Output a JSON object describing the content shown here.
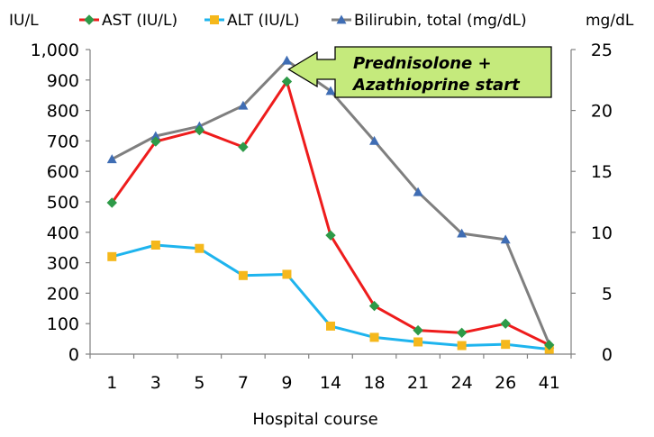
{
  "chart_data": {
    "type": "line",
    "categories": [
      "1",
      "3",
      "5",
      "7",
      "9",
      "14",
      "18",
      "21",
      "24",
      "26",
      "41"
    ],
    "xlabel": "Hospital course",
    "y_left": {
      "unit": "IU/L",
      "range": [
        0,
        1000
      ],
      "ticks": [
        "0",
        "100",
        "200",
        "300",
        "400",
        "500",
        "600",
        "700",
        "800",
        "900",
        "1,000"
      ]
    },
    "y_right": {
      "unit": "mg/dL",
      "range": [
        0,
        25
      ],
      "ticks": [
        "0",
        "5",
        "10",
        "15",
        "20",
        "25"
      ]
    },
    "series": [
      {
        "name": "AST (IU/L)",
        "axis": "left",
        "color": "#ee1c1c",
        "marker": "diamond",
        "marker_color": "#2e9a48",
        "values": [
          497,
          698,
          735,
          680,
          895,
          390,
          158,
          78,
          70,
          100,
          30
        ]
      },
      {
        "name": "ALT (IU/L)",
        "axis": "left",
        "color": "#1eb4ee",
        "marker": "square",
        "marker_color": "#f5b81c",
        "values": [
          320,
          358,
          347,
          258,
          262,
          92,
          55,
          40,
          28,
          32,
          16
        ]
      },
      {
        "name": "Bilirubin, total (mg/dL)",
        "axis": "right",
        "color": "#7f7f7f",
        "marker": "triangle",
        "marker_color": "#3f6db4",
        "values": [
          16.0,
          17.9,
          18.7,
          20.4,
          24.1,
          21.6,
          17.5,
          13.3,
          9.9,
          9.4,
          0.8
        ]
      }
    ],
    "legend_position": "top",
    "grid": false,
    "annotation": {
      "lines": [
        "Prednisolone  +",
        "Azathioprine start"
      ],
      "fill": "#c5ea7c",
      "points_to_category": "9"
    }
  }
}
